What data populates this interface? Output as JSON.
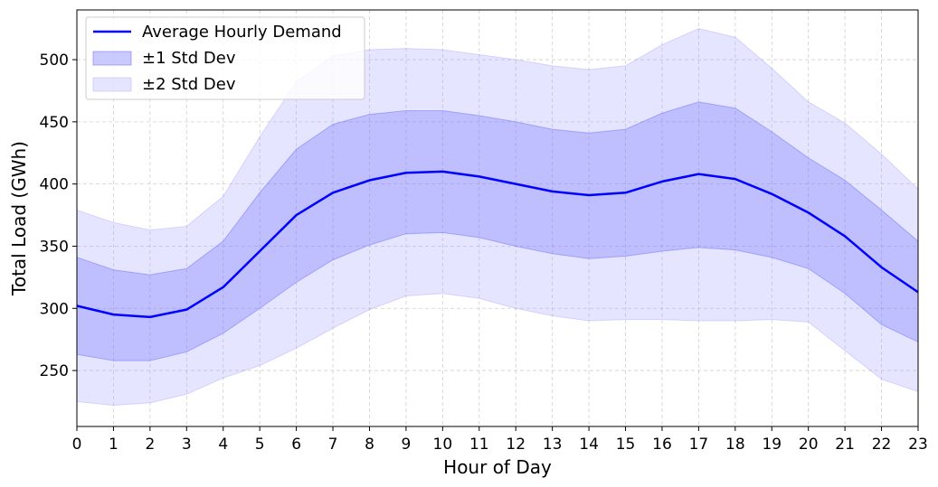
{
  "chart_data": {
    "type": "line",
    "title": "",
    "xlabel": "Hour of Day",
    "ylabel": "Total Load (GWh)",
    "x": [
      0,
      1,
      2,
      3,
      4,
      5,
      6,
      7,
      8,
      9,
      10,
      11,
      12,
      13,
      14,
      15,
      16,
      17,
      18,
      19,
      20,
      21,
      22,
      23
    ],
    "xlim": [
      0,
      23
    ],
    "ylim": [
      205,
      540
    ],
    "yticks": [
      250,
      300,
      350,
      400,
      450,
      500
    ],
    "grid": true,
    "legend_position": "top-left",
    "series": [
      {
        "name": "Average Hourly Demand",
        "kind": "line",
        "color": "#0000ff",
        "values": [
          302,
          295,
          293,
          299,
          317,
          346,
          375,
          393,
          403,
          409,
          410,
          406,
          400,
          394,
          391,
          393,
          402,
          408,
          404,
          392,
          377,
          358,
          333,
          313
        ]
      },
      {
        "name": "±1 Std Dev",
        "kind": "band",
        "color": "#6666ff",
        "lower": [
          263,
          258,
          258,
          265,
          280,
          300,
          321,
          339,
          351,
          360,
          361,
          357,
          350,
          344,
          340,
          342,
          346,
          349,
          347,
          341,
          332,
          312,
          287,
          273
        ],
        "upper": [
          341,
          331,
          327,
          332,
          354,
          393,
          428,
          448,
          456,
          459,
          459,
          455,
          450,
          444,
          441,
          444,
          457,
          466,
          461,
          442,
          421,
          403,
          379,
          354
        ]
      },
      {
        "name": "±2 Std Dev",
        "kind": "band",
        "color": "#9999ff",
        "lower": [
          225,
          222,
          224,
          231,
          244,
          254,
          268,
          284,
          299,
          310,
          312,
          308,
          300,
          294,
          290,
          291,
          291,
          290,
          290,
          291,
          289,
          266,
          243,
          233
        ],
        "upper": [
          379,
          369,
          363,
          366,
          390,
          438,
          482,
          503,
          508,
          509,
          508,
          504,
          500,
          495,
          492,
          495,
          512,
          525,
          518,
          493,
          466,
          449,
          424,
          396
        ]
      }
    ]
  }
}
